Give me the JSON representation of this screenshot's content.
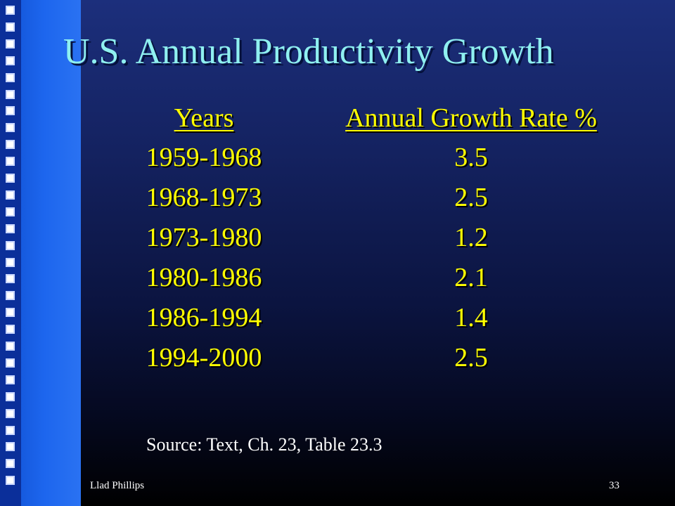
{
  "slide": {
    "title": "U.S. Annual Productivity Growth",
    "table": {
      "headers": [
        "Years",
        "Annual Growth Rate %"
      ],
      "rows": [
        [
          "1959-1968",
          "3.5"
        ],
        [
          "1968-1973",
          "2.5"
        ],
        [
          "1973-1980",
          "1.2"
        ],
        [
          "1980-1986",
          "2.1"
        ],
        [
          "1986-1994",
          "1.4"
        ],
        [
          "1994-2000",
          "2.5"
        ]
      ]
    },
    "source": "Source: Text, Ch. 23, Table 23.3",
    "footer": {
      "author": "Llad Phillips",
      "page_number": "33"
    },
    "colors": {
      "title": "#8ff0f0",
      "table_text": "#ffff00",
      "sidebar": "#1d66ee",
      "background_top": "#1c2f7c",
      "background_bottom": "#000000"
    }
  }
}
